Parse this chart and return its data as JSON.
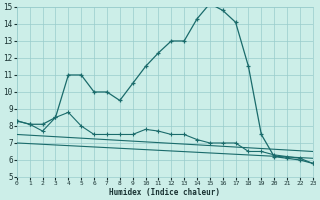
{
  "xlabel": "Humidex (Indice chaleur)",
  "bg_color": "#cceee8",
  "grid_color": "#99cccc",
  "line_color": "#1a6b6b",
  "xmin": 0,
  "xmax": 23,
  "ymin": 5,
  "ymax": 15,
  "line1_x": [
    0,
    1,
    2,
    3,
    4,
    5,
    6,
    7,
    8,
    9,
    10,
    11,
    12,
    13,
    14,
    15,
    16,
    17,
    18,
    19,
    20,
    21,
    22,
    23
  ],
  "line1_y": [
    8.3,
    8.1,
    8.1,
    8.5,
    11.0,
    11.0,
    10.0,
    10.0,
    9.5,
    10.5,
    11.5,
    12.3,
    13.0,
    13.0,
    14.3,
    15.2,
    14.8,
    14.1,
    11.5,
    7.5,
    6.2,
    6.1,
    6.0,
    5.8
  ],
  "line2_x": [
    0,
    1,
    2,
    3,
    4,
    5,
    6,
    7,
    8,
    9,
    10,
    11,
    12,
    13,
    14,
    15,
    16,
    17,
    18,
    19,
    20,
    21,
    22,
    23
  ],
  "line2_y": [
    8.3,
    8.1,
    7.7,
    8.5,
    8.8,
    8.0,
    7.5,
    7.5,
    7.5,
    7.5,
    7.8,
    7.7,
    7.5,
    7.5,
    7.2,
    7.0,
    7.0,
    7.0,
    6.5,
    6.5,
    6.3,
    6.2,
    6.1,
    5.8
  ],
  "line3_x": [
    0,
    23
  ],
  "line3_y": [
    7.5,
    6.5
  ],
  "line4_x": [
    0,
    23
  ],
  "line4_y": [
    7.0,
    6.1
  ]
}
